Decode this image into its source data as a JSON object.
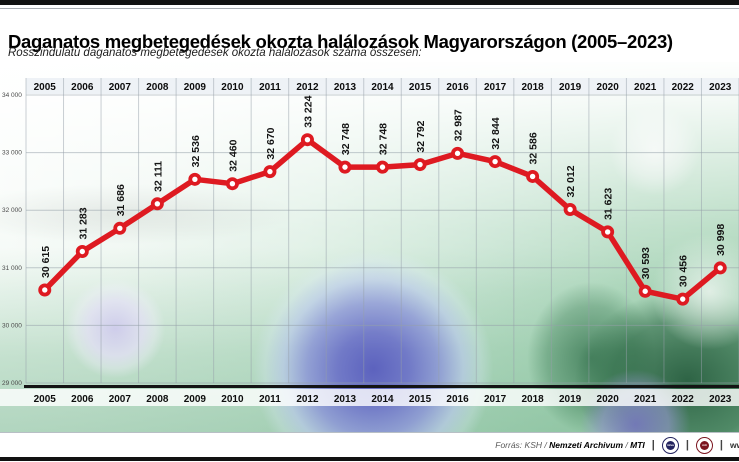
{
  "header": {
    "title": "Daganatos megbetegedések okozta halálozások Magyarországon (2005–2023)",
    "subtitle": "Rosszindulatú daganatos megbetegedések okozta halálozások száma összesen:"
  },
  "chart_data": {
    "type": "line",
    "title": "Daganatos megbetegedések okozta halálozások Magyarországon (2005–2023)",
    "subtitle": "Rosszindulatú daganatos megbetegedések okozta halálozások száma összesen:",
    "categories": [
      "2005",
      "2006",
      "2007",
      "2008",
      "2009",
      "2010",
      "2011",
      "2012",
      "2013",
      "2014",
      "2015",
      "2016",
      "2017",
      "2018",
      "2019",
      "2020",
      "2021",
      "2022",
      "2023"
    ],
    "values": [
      30615,
      31283,
      31686,
      32111,
      32536,
      32460,
      32670,
      33224,
      32748,
      32748,
      32792,
      32987,
      32844,
      32586,
      32012,
      31623,
      30593,
      30456,
      30998
    ],
    "ylim": [
      29000,
      34000
    ],
    "ytick_values": [
      34000,
      33000,
      32000,
      31000,
      30000,
      29000
    ],
    "ytick_labels": [
      "34 000",
      "33 000",
      "32 000",
      "31 000",
      "30 000",
      "29 000"
    ],
    "line_color": "#de1a21",
    "marker_style": "donut-circle",
    "data_label_rotation": -90,
    "grid": true,
    "x_axis_position": "top-and-bottom",
    "legend": "none"
  },
  "footer": {
    "source_prefix": "Forrás:",
    "source_agency": "KSH",
    "separator": "/",
    "source_archive": "Nemzeti Archivum",
    "source_agency2": "MTI",
    "divider": "|",
    "badge1_text": "mtva",
    "badge2_text": "mti",
    "clipped_text": "ww"
  }
}
